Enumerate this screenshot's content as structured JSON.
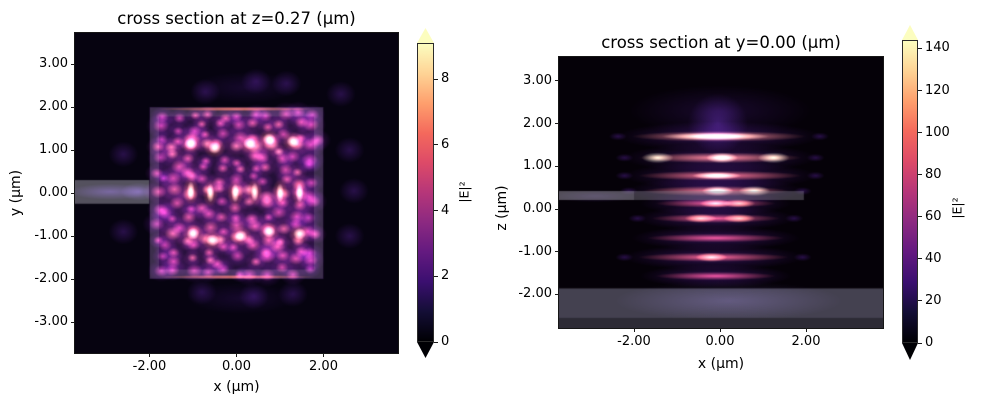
{
  "chart_data": [
    {
      "type": "heatmap",
      "title": "cross section at z=0.27 (μm)",
      "xlabel": "x (μm)",
      "ylabel": "y (μm)",
      "xlim": [
        -3.72,
        3.71
      ],
      "ylim": [
        -3.72,
        3.7
      ],
      "xticks": {
        "values": [
          -2,
          0,
          2
        ],
        "labels": [
          "-2.00",
          "0.00",
          "2.00"
        ]
      },
      "yticks": {
        "values": [
          3,
          2,
          1,
          0,
          -1,
          -2,
          -3
        ],
        "labels": [
          "3.00",
          "2.00",
          "1.00",
          "0.00",
          "-1.00",
          "-2.00",
          "-3.00"
        ]
      },
      "colorbar": {
        "label": "|E|²",
        "ticks": [
          0,
          2,
          4,
          6,
          8
        ],
        "tick_labels": [
          "0",
          "2",
          "4",
          "6",
          "8"
        ],
        "vmin": 0,
        "vmax": 9.1,
        "extend": "both",
        "colormap": "magma"
      },
      "structures": {
        "device_square_um": {
          "x": [
            -2,
            2
          ],
          "y": [
            -2,
            2
          ]
        },
        "input_waveguide_um": {
          "x": [
            -3.72,
            -2
          ],
          "y": [
            -0.25,
            0.3
          ]
        }
      },
      "field": {
        "description": "speckled standing-wave |E|² pattern filling the 4×4 μm square device; brightest rows near y=+1.05, 0 and -1.0 μm; faint purple radiation lobes outside the square",
        "hot_rows_y_um": [
          1.05,
          0,
          -1.0
        ],
        "hot_spots_um": [
          [
            -1.05,
            0.05
          ],
          [
            -0.6,
            0.0
          ],
          [
            -0.03,
            0.0
          ],
          [
            0.42,
            0.02
          ],
          [
            1.0,
            0.0
          ],
          [
            1.45,
            0.0
          ],
          [
            -1.05,
            1.15
          ],
          [
            -0.5,
            1.05
          ],
          [
            0.3,
            1.15
          ],
          [
            0.75,
            1.25
          ],
          [
            1.3,
            1.2
          ],
          [
            -1.0,
            -0.95
          ],
          [
            -0.55,
            -1.1
          ],
          [
            0.1,
            -1.0
          ],
          [
            0.75,
            -0.9
          ],
          [
            1.45,
            -0.95
          ]
        ],
        "outer_lobes_um": [
          [
            -0.72,
            2.35
          ],
          [
            0.45,
            2.6
          ],
          [
            1.15,
            2.55
          ],
          [
            2.4,
            2.3
          ],
          [
            -0.8,
            -2.3
          ],
          [
            0.4,
            -2.4
          ],
          [
            1.3,
            -2.35
          ],
          [
            2.6,
            1.0
          ],
          [
            2.7,
            0.05
          ],
          [
            2.6,
            -1.0
          ],
          [
            -2.6,
            0.9
          ],
          [
            -2.6,
            -0.9
          ]
        ]
      }
    },
    {
      "type": "heatmap",
      "title": "cross section at y=0.00 (μm)",
      "xlabel": "x (μm)",
      "ylabel": "z (μm)",
      "xlim": [
        -3.74,
        3.79
      ],
      "ylim": [
        -2.79,
        3.56
      ],
      "xticks": {
        "values": [
          -2,
          0,
          2
        ],
        "labels": [
          "-2.00",
          "0.00",
          "2.00"
        ]
      },
      "yticks": {
        "values": [
          3,
          2,
          1,
          0,
          -1,
          -2
        ],
        "labels": [
          "3.00",
          "2.00",
          "1.00",
          "0.00",
          "-1.00",
          "-2.00"
        ]
      },
      "colorbar": {
        "label": "|E|²",
        "ticks": [
          0,
          20,
          40,
          60,
          80,
          100,
          120,
          140
        ],
        "tick_labels": [
          "0",
          "20",
          "40",
          "60",
          "80",
          "100",
          "120",
          "140"
        ],
        "vmin": 0,
        "vmax": 144,
        "extend": "both",
        "colormap": "magma"
      },
      "structures": {
        "substrate_um": {
          "z_top": -1.86
        },
        "waveguide_slab_um": {
          "z": [
            0.21,
            0.42
          ],
          "x_max": 1.95
        }
      },
      "field": {
        "description": "horizontal standing-wave layers stacked in z above and below the slab; brightest layer at z≈1.7 μm; gray substrate below z≈-1.86 μm; faint purple plume escaping upward at x≈0",
        "stripes": [
          {
            "z": 1.7,
            "x_span": [
              -2.05,
              2.0
            ],
            "intensity": 1.0,
            "core_x": [
              -1.35,
              1.15
            ]
          },
          {
            "z": 1.2,
            "x_span": [
              -1.9,
              1.9
            ],
            "intensity": 0.95,
            "blobs_x": [
              -1.45,
              0.05,
              1.25
            ]
          },
          {
            "z": 0.78,
            "x_span": [
              -1.9,
              1.9
            ],
            "intensity": 0.82,
            "core_x": [
              -0.65,
              0.5
            ]
          },
          {
            "z": 0.42,
            "x_span": [
              -1.8,
              1.6
            ],
            "intensity": 0.88,
            "blobs_x": [
              -0.05,
              0.8
            ]
          },
          {
            "z": 0.13,
            "x_span": [
              -1.5,
              1.3
            ],
            "intensity": 0.55,
            "blobs_x": [
              -0.1,
              0.45
            ]
          },
          {
            "z": -0.22,
            "x_span": [
              -1.6,
              1.4
            ],
            "intensity": 0.6,
            "blobs_x": [
              -0.45,
              0.45
            ]
          },
          {
            "z": -0.68,
            "x_span": [
              -1.7,
              1.5
            ],
            "intensity": 0.5
          },
          {
            "z": -1.13,
            "x_span": [
              -1.9,
              1.6
            ],
            "intensity": 0.65,
            "blobs_x": [
              -0.2
            ]
          },
          {
            "z": -1.57,
            "x_span": [
              -1.5,
              1.3
            ],
            "intensity": 0.45
          }
        ],
        "top_plume_um": {
          "x": -0.05,
          "z_range": [
            1.85,
            2.75
          ]
        }
      }
    }
  ]
}
